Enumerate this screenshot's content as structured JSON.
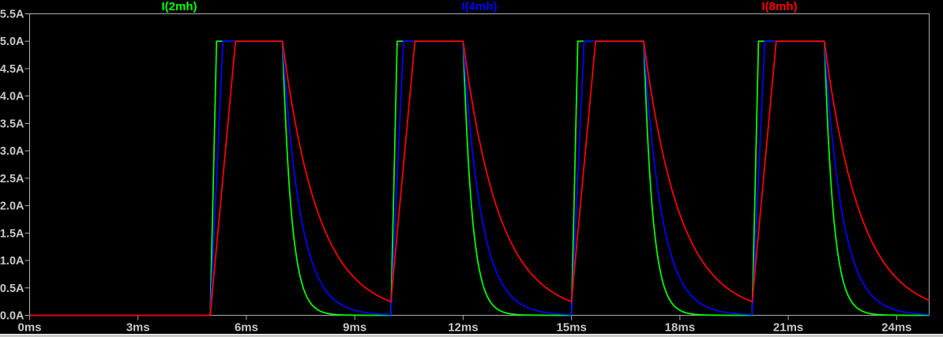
{
  "window": {
    "background_color": "#000000",
    "bottom_edge_color": "#c8c8c4"
  },
  "chart_data": {
    "type": "line",
    "title": "",
    "xlabel": "",
    "ylabel": "",
    "x_unit": "ms",
    "y_unit": "A",
    "x_range": [
      0,
      24.9
    ],
    "y_range": [
      0,
      5.5
    ],
    "grid": false,
    "frame_color": "#b0b0b0",
    "tick_label_color": "#c8c8c8",
    "x_ticks": [
      {
        "value": 0,
        "label": "0ms"
      },
      {
        "value": 3,
        "label": "3ms"
      },
      {
        "value": 6,
        "label": "6ms"
      },
      {
        "value": 9,
        "label": "9ms"
      },
      {
        "value": 12,
        "label": "12ms"
      },
      {
        "value": 15,
        "label": "15ms"
      },
      {
        "value": 18,
        "label": "18ms"
      },
      {
        "value": 21,
        "label": "21ms"
      },
      {
        "value": 24,
        "label": "24ms"
      }
    ],
    "y_ticks": [
      {
        "value": 0.0,
        "label": "0.0A"
      },
      {
        "value": 0.5,
        "label": "0.5A"
      },
      {
        "value": 1.0,
        "label": "1.0A"
      },
      {
        "value": 1.5,
        "label": "1.5A"
      },
      {
        "value": 2.0,
        "label": "2.0A"
      },
      {
        "value": 2.5,
        "label": "2.5A"
      },
      {
        "value": 3.0,
        "label": "3.0A"
      },
      {
        "value": 3.5,
        "label": "3.5A"
      },
      {
        "value": 4.0,
        "label": "4.0A"
      },
      {
        "value": 4.5,
        "label": "4.5A"
      },
      {
        "value": 5.0,
        "label": "5.0A"
      },
      {
        "value": 5.5,
        "label": "5.5A"
      }
    ],
    "amplitude_a": 5.0,
    "pulse": {
      "first_rise_ms": 5,
      "period_ms": 5,
      "on_duration_ms": 2,
      "num_pulses": 4,
      "baseline_a": 0
    },
    "series": [
      {
        "name": "I(2mh)",
        "color": "#00ff00",
        "rise_ms": 0.175,
        "decay_tau_ms": 0.25
      },
      {
        "name": "I(4mh)",
        "color": "#0000ff",
        "rise_ms": 0.35,
        "decay_tau_ms": 0.5
      },
      {
        "name": "I(8mh)",
        "color": "#ff0000",
        "rise_ms": 0.7,
        "decay_tau_ms": 1.0
      }
    ],
    "legend_position": "top-evenly-spaced"
  }
}
